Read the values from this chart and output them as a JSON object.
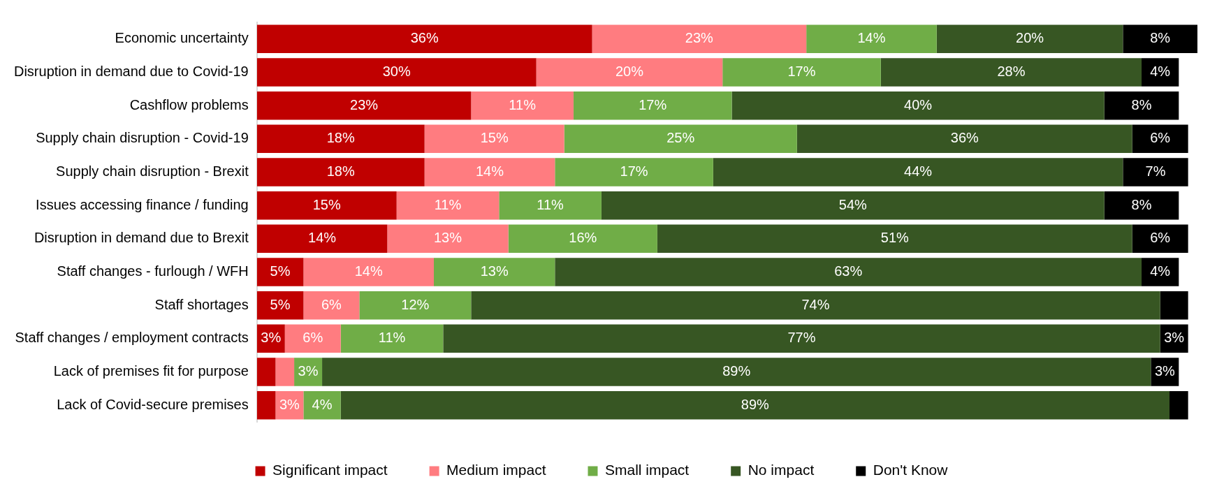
{
  "chart_data": {
    "type": "bar",
    "orientation": "horizontal",
    "stacked": true,
    "legend": "bottom",
    "categories": [
      "Economic uncertainty",
      "Disruption in demand due to Covid-19",
      "Cashflow problems",
      "Supply chain disruption - Covid-19",
      "Supply chain disruption - Brexit",
      "Issues accessing finance / funding",
      "Disruption in demand due to Brexit",
      "Staff changes - furlough / WFH",
      "Staff shortages",
      "Staff changes / employment contracts",
      "Lack of premises fit for purpose",
      "Lack of Covid-secure premises"
    ],
    "series": [
      {
        "name": "Significant impact",
        "color": "#c00000",
        "values": [
          36,
          30,
          23,
          18,
          18,
          15,
          14,
          5,
          5,
          3,
          2,
          2
        ],
        "value_labels": [
          "36%",
          "30%",
          "23%",
          "18%",
          "18%",
          "15%",
          "14%",
          "5%",
          "5%",
          "3%",
          null,
          null
        ]
      },
      {
        "name": "Medium impact",
        "color": "#ff7c80",
        "values": [
          23,
          20,
          11,
          15,
          14,
          11,
          13,
          14,
          6,
          6,
          2,
          3
        ],
        "value_labels": [
          "23%",
          "20%",
          "11%",
          "15%",
          "14%",
          "11%",
          "13%",
          "14%",
          "6%",
          "6%",
          null,
          "3%"
        ]
      },
      {
        "name": "Small impact",
        "color": "#70ad47",
        "values": [
          14,
          17,
          17,
          25,
          17,
          11,
          16,
          13,
          12,
          11,
          3,
          4
        ],
        "value_labels": [
          "14%",
          "17%",
          "17%",
          "25%",
          "17%",
          "11%",
          "16%",
          "13%",
          "12%",
          "11%",
          "3%",
          "4%"
        ]
      },
      {
        "name": "No impact",
        "color": "#375623",
        "values": [
          20,
          28,
          40,
          36,
          44,
          54,
          51,
          63,
          74,
          77,
          89,
          89
        ],
        "value_labels": [
          "20%",
          "28%",
          "40%",
          "36%",
          "44%",
          "54%",
          "51%",
          "63%",
          "74%",
          "77%",
          "89%",
          "89%"
        ]
      },
      {
        "name": "Don't Know",
        "color": "#000000",
        "values": [
          8,
          4,
          8,
          6,
          7,
          8,
          6,
          4,
          3,
          3,
          3,
          2
        ],
        "value_labels": [
          "8%",
          "4%",
          "8%",
          "6%",
          "7%",
          "8%",
          "6%",
          "4%",
          null,
          "3%",
          "3%",
          null
        ]
      }
    ]
  }
}
